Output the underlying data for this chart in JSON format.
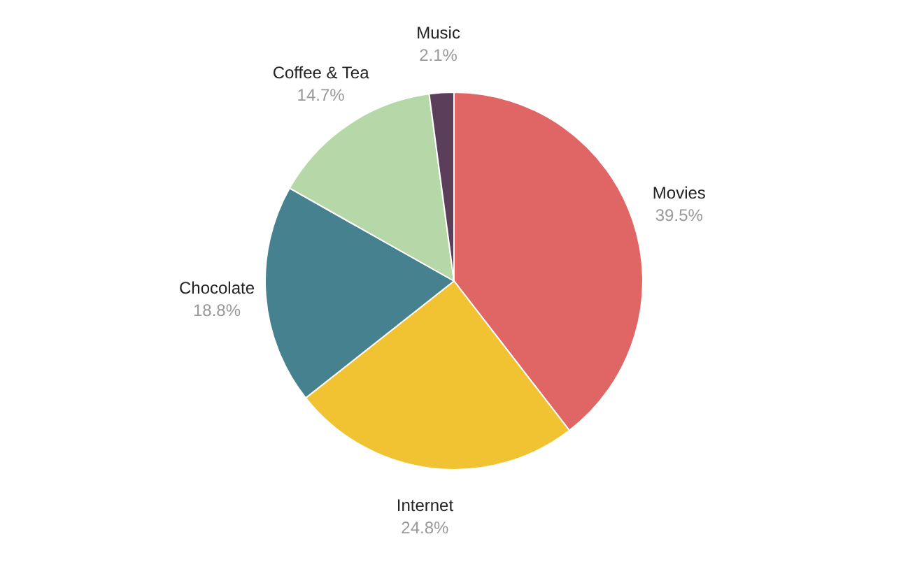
{
  "chart_data": {
    "type": "pie",
    "categories": [
      "Movies",
      "Internet",
      "Chocolate",
      "Coffee & Tea",
      "Music"
    ],
    "values": [
      39.5,
      24.8,
      18.8,
      14.7,
      2.1
    ],
    "colors": [
      "#e06666",
      "#f1c232",
      "#45818e",
      "#b6d7a8",
      "#5b3f5a"
    ],
    "value_labels": [
      "39.5%",
      "24.8%",
      "18.8%",
      "14.7%",
      "2.1%"
    ],
    "legend": false
  }
}
